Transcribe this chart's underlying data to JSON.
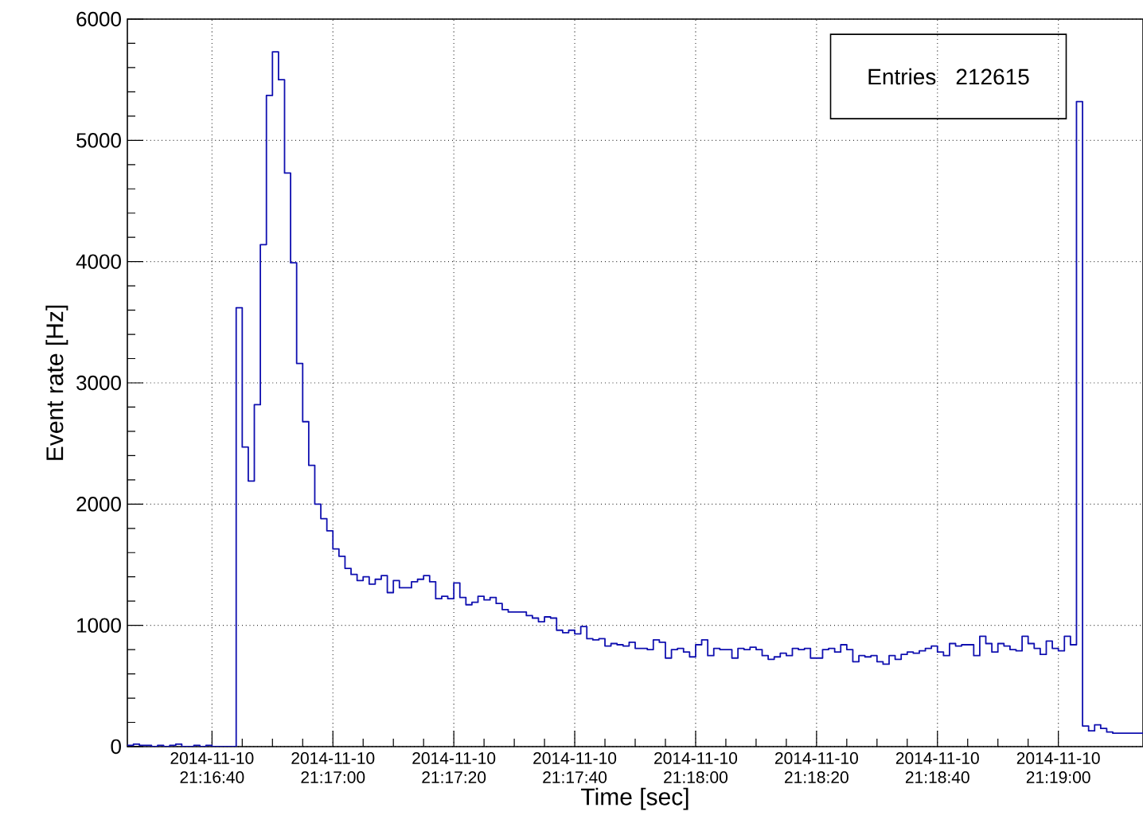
{
  "chart_data": {
    "type": "histogram",
    "xlabel": "Time [sec]",
    "ylabel": "Event rate [Hz]",
    "annotations": [
      "Entries",
      "212615"
    ],
    "color": "#1010b0",
    "grid": true,
    "xlim": [
      "2014-11-10T21:16:26",
      "2014-11-10T21:19:14"
    ],
    "ylim": [
      0,
      6000
    ],
    "xticks": [
      {
        "value": "2014-11-10T21:16:40",
        "label": "2014-11-10 21:16:40"
      },
      {
        "value": "2014-11-10T21:17:00",
        "label": "2014-11-10 21:17:00"
      },
      {
        "value": "2014-11-10T21:17:20",
        "label": "2014-11-10 21:17:20"
      },
      {
        "value": "2014-11-10T21:17:40",
        "label": "2014-11-10 21:17:40"
      },
      {
        "value": "2014-11-10T21:18:00",
        "label": "2014-11-10 21:18:00"
      },
      {
        "value": "2014-11-10T21:18:20",
        "label": "2014-11-10 21:18:20"
      },
      {
        "value": "2014-11-10T21:18:40",
        "label": "2014-11-10 21:18:40"
      },
      {
        "value": "2014-11-10T21:19:00",
        "label": "2014-11-10 21:19:00"
      }
    ],
    "yticks": [
      0,
      1000,
      2000,
      3000,
      4000,
      5000,
      6000
    ],
    "bins": [
      "2014-11-10T21:16:26",
      "2014-11-10T21:16:27",
      "2014-11-10T21:16:28",
      "2014-11-10T21:16:29",
      "2014-11-10T21:16:30",
      "2014-11-10T21:16:31",
      "2014-11-10T21:16:32",
      "2014-11-10T21:16:33",
      "2014-11-10T21:16:34",
      "2014-11-10T21:16:35",
      "2014-11-10T21:16:36",
      "2014-11-10T21:16:37",
      "2014-11-10T21:16:38",
      "2014-11-10T21:16:39",
      "2014-11-10T21:16:40",
      "2014-11-10T21:16:41",
      "2014-11-10T21:16:42",
      "2014-11-10T21:16:43",
      "2014-11-10T21:16:44",
      "2014-11-10T21:16:45",
      "2014-11-10T21:16:46",
      "2014-11-10T21:16:47",
      "2014-11-10T21:16:48",
      "2014-11-10T21:16:49",
      "2014-11-10T21:16:50",
      "2014-11-10T21:16:51",
      "2014-11-10T21:16:52",
      "2014-11-10T21:16:53",
      "2014-11-10T21:16:54",
      "2014-11-10T21:16:55",
      "2014-11-10T21:16:56",
      "2014-11-10T21:16:57",
      "2014-11-10T21:16:58",
      "2014-11-10T21:16:59",
      "2014-11-10T21:17:00",
      "2014-11-10T21:17:01",
      "2014-11-10T21:17:02",
      "2014-11-10T21:17:03",
      "2014-11-10T21:17:04",
      "2014-11-10T21:17:05",
      "2014-11-10T21:17:06",
      "2014-11-10T21:17:07",
      "2014-11-10T21:17:08",
      "2014-11-10T21:17:09",
      "2014-11-10T21:17:10",
      "2014-11-10T21:17:11",
      "2014-11-10T21:17:12",
      "2014-11-10T21:17:13",
      "2014-11-10T21:17:14",
      "2014-11-10T21:17:15",
      "2014-11-10T21:17:16",
      "2014-11-10T21:17:17",
      "2014-11-10T21:17:18",
      "2014-11-10T21:17:19",
      "2014-11-10T21:17:20",
      "2014-11-10T21:17:21",
      "2014-11-10T21:17:22",
      "2014-11-10T21:17:23",
      "2014-11-10T21:17:24",
      "2014-11-10T21:17:25",
      "2014-11-10T21:17:26",
      "2014-11-10T21:17:27",
      "2014-11-10T21:17:28",
      "2014-11-10T21:17:29",
      "2014-11-10T21:17:30",
      "2014-11-10T21:17:31",
      "2014-11-10T21:17:32",
      "2014-11-10T21:17:33",
      "2014-11-10T21:17:34",
      "2014-11-10T21:17:35",
      "2014-11-10T21:17:36",
      "2014-11-10T21:17:37",
      "2014-11-10T21:17:38",
      "2014-11-10T21:17:39",
      "2014-11-10T21:17:40",
      "2014-11-10T21:17:41",
      "2014-11-10T21:17:42",
      "2014-11-10T21:17:43",
      "2014-11-10T21:17:44",
      "2014-11-10T21:17:45",
      "2014-11-10T21:17:46",
      "2014-11-10T21:17:47",
      "2014-11-10T21:17:48",
      "2014-11-10T21:17:49",
      "2014-11-10T21:17:50",
      "2014-11-10T21:17:51",
      "2014-11-10T21:17:52",
      "2014-11-10T21:17:53",
      "2014-11-10T21:17:54",
      "2014-11-10T21:17:55",
      "2014-11-10T21:17:56",
      "2014-11-10T21:17:57",
      "2014-11-10T21:17:58",
      "2014-11-10T21:17:59",
      "2014-11-10T21:18:00",
      "2014-11-10T21:18:01",
      "2014-11-10T21:18:02",
      "2014-11-10T21:18:03",
      "2014-11-10T21:18:04",
      "2014-11-10T21:18:05",
      "2014-11-10T21:18:06",
      "2014-11-10T21:18:07",
      "2014-11-10T21:18:08",
      "2014-11-10T21:18:09",
      "2014-11-10T21:18:10",
      "2014-11-10T21:18:11",
      "2014-11-10T21:18:12",
      "2014-11-10T21:18:13",
      "2014-11-10T21:18:14",
      "2014-11-10T21:18:15",
      "2014-11-10T21:18:16",
      "2014-11-10T21:18:17",
      "2014-11-10T21:18:18",
      "2014-11-10T21:18:19",
      "2014-11-10T21:18:20",
      "2014-11-10T21:18:21",
      "2014-11-10T21:18:22",
      "2014-11-10T21:18:23",
      "2014-11-10T21:18:24",
      "2014-11-10T21:18:25",
      "2014-11-10T21:18:26",
      "2014-11-10T21:18:27",
      "2014-11-10T21:18:28",
      "2014-11-10T21:18:29",
      "2014-11-10T21:18:30",
      "2014-11-10T21:18:31",
      "2014-11-10T21:18:32",
      "2014-11-10T21:18:33",
      "2014-11-10T21:18:34",
      "2014-11-10T21:18:35",
      "2014-11-10T21:18:36",
      "2014-11-10T21:18:37",
      "2014-11-10T21:18:38",
      "2014-11-10T21:18:39",
      "2014-11-10T21:18:40",
      "2014-11-10T21:18:41",
      "2014-11-10T21:18:42",
      "2014-11-10T21:18:43",
      "2014-11-10T21:18:44",
      "2014-11-10T21:18:45",
      "2014-11-10T21:18:46",
      "2014-11-10T21:18:47",
      "2014-11-10T21:18:48",
      "2014-11-10T21:18:49",
      "2014-11-10T21:18:50",
      "2014-11-10T21:18:51",
      "2014-11-10T21:18:52",
      "2014-11-10T21:18:53",
      "2014-11-10T21:18:54",
      "2014-11-10T21:18:55",
      "2014-11-10T21:18:56",
      "2014-11-10T21:18:57",
      "2014-11-10T21:18:58",
      "2014-11-10T21:18:59",
      "2014-11-10T21:19:00",
      "2014-11-10T21:19:01",
      "2014-11-10T21:19:02",
      "2014-11-10T21:19:03",
      "2014-11-10T21:19:04",
      "2014-11-10T21:19:05",
      "2014-11-10T21:19:06",
      "2014-11-10T21:19:07",
      "2014-11-10T21:19:08",
      "2014-11-10T21:19:09",
      "2014-11-10T21:19:10",
      "2014-11-10T21:19:11",
      "2014-11-10T21:19:12",
      "2014-11-10T21:19:13",
      "2014-11-10T21:19:14"
    ],
    "values": [
      10,
      20,
      10,
      10,
      0,
      10,
      0,
      10,
      20,
      0,
      0,
      10,
      0,
      10,
      0,
      0,
      0,
      0,
      3620,
      2470,
      2190,
      2820,
      4140,
      5370,
      5730,
      5500,
      4730,
      3990,
      3160,
      2680,
      2320,
      2000,
      1880,
      1780,
      1630,
      1570,
      1470,
      1420,
      1370,
      1400,
      1340,
      1380,
      1410,
      1270,
      1370,
      1310,
      1310,
      1360,
      1380,
      1410,
      1360,
      1220,
      1240,
      1220,
      1350,
      1230,
      1170,
      1190,
      1240,
      1210,
      1230,
      1180,
      1130,
      1110,
      1110,
      1110,
      1080,
      1060,
      1030,
      1070,
      1060,
      960,
      940,
      960,
      930,
      990,
      890,
      880,
      890,
      830,
      850,
      840,
      830,
      860,
      810,
      810,
      800,
      880,
      860,
      730,
      800,
      810,
      780,
      740,
      840,
      880,
      750,
      810,
      800,
      800,
      730,
      810,
      800,
      820,
      800,
      750,
      720,
      740,
      770,
      750,
      810,
      800,
      810,
      730,
      730,
      800,
      810,
      780,
      840,
      800,
      700,
      750,
      740,
      750,
      700,
      680,
      750,
      720,
      760,
      780,
      770,
      790,
      810,
      830,
      780,
      750,
      850,
      830,
      840,
      840,
      750,
      910,
      850,
      780,
      850,
      830,
      800,
      790,
      910,
      850,
      810,
      760,
      870,
      810,
      790,
      910,
      840,
      5320,
      170,
      130,
      180,
      150,
      120,
      110,
      110,
      110,
      110,
      110
    ]
  }
}
